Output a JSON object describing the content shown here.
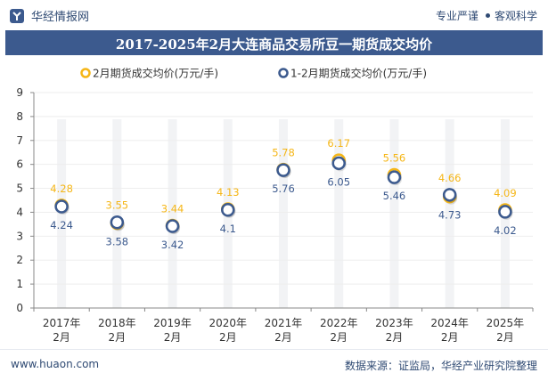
{
  "header": {
    "brand": "华经情报网",
    "slogan_left": "专业严谨",
    "slogan_right": "客观科学"
  },
  "title": "2017-2025年2月大连商品交易所豆一期货成交均价",
  "footer": {
    "website": "www.huaon.com",
    "source": "数据来源：证监局，华经产业研究院整理"
  },
  "chart_data": {
    "type": "line",
    "title": "2017-2025年2月大连商品交易所豆一期货成交均价",
    "xlabel": "",
    "ylabel": "",
    "ylim": [
      0,
      9
    ],
    "yticks": [
      "0",
      "1",
      "2",
      "3",
      "4",
      "5",
      "6",
      "7",
      "8",
      "9"
    ],
    "categories": [
      "2017年\n2月",
      "2018年\n2月",
      "2019年\n2月",
      "2020年\n2月",
      "2021年\n2月",
      "2022年\n2月",
      "2023年\n2月",
      "2024年\n2月",
      "2025年\n2月"
    ],
    "legend_position": "top",
    "series": [
      {
        "name": "2月期货成交均价(万元/手)",
        "color": "#f5b617",
        "values": [
          4.28,
          3.55,
          3.44,
          4.13,
          5.78,
          6.17,
          5.56,
          4.66,
          4.09
        ],
        "labels": [
          "4.28",
          "3.55",
          "3.44",
          "4.13",
          "5.78",
          "6.17",
          "5.56",
          "4.66",
          "4.09"
        ]
      },
      {
        "name": "1-2月期货成交均价(万元/手)",
        "color": "#3c5a8e",
        "values": [
          4.24,
          3.58,
          3.42,
          4.1,
          5.76,
          6.05,
          5.46,
          4.73,
          4.02
        ],
        "labels": [
          "4.24",
          "3.58",
          "3.42",
          "4.1",
          "5.76",
          "6.05",
          "5.46",
          "4.73",
          "4.02"
        ]
      }
    ]
  }
}
